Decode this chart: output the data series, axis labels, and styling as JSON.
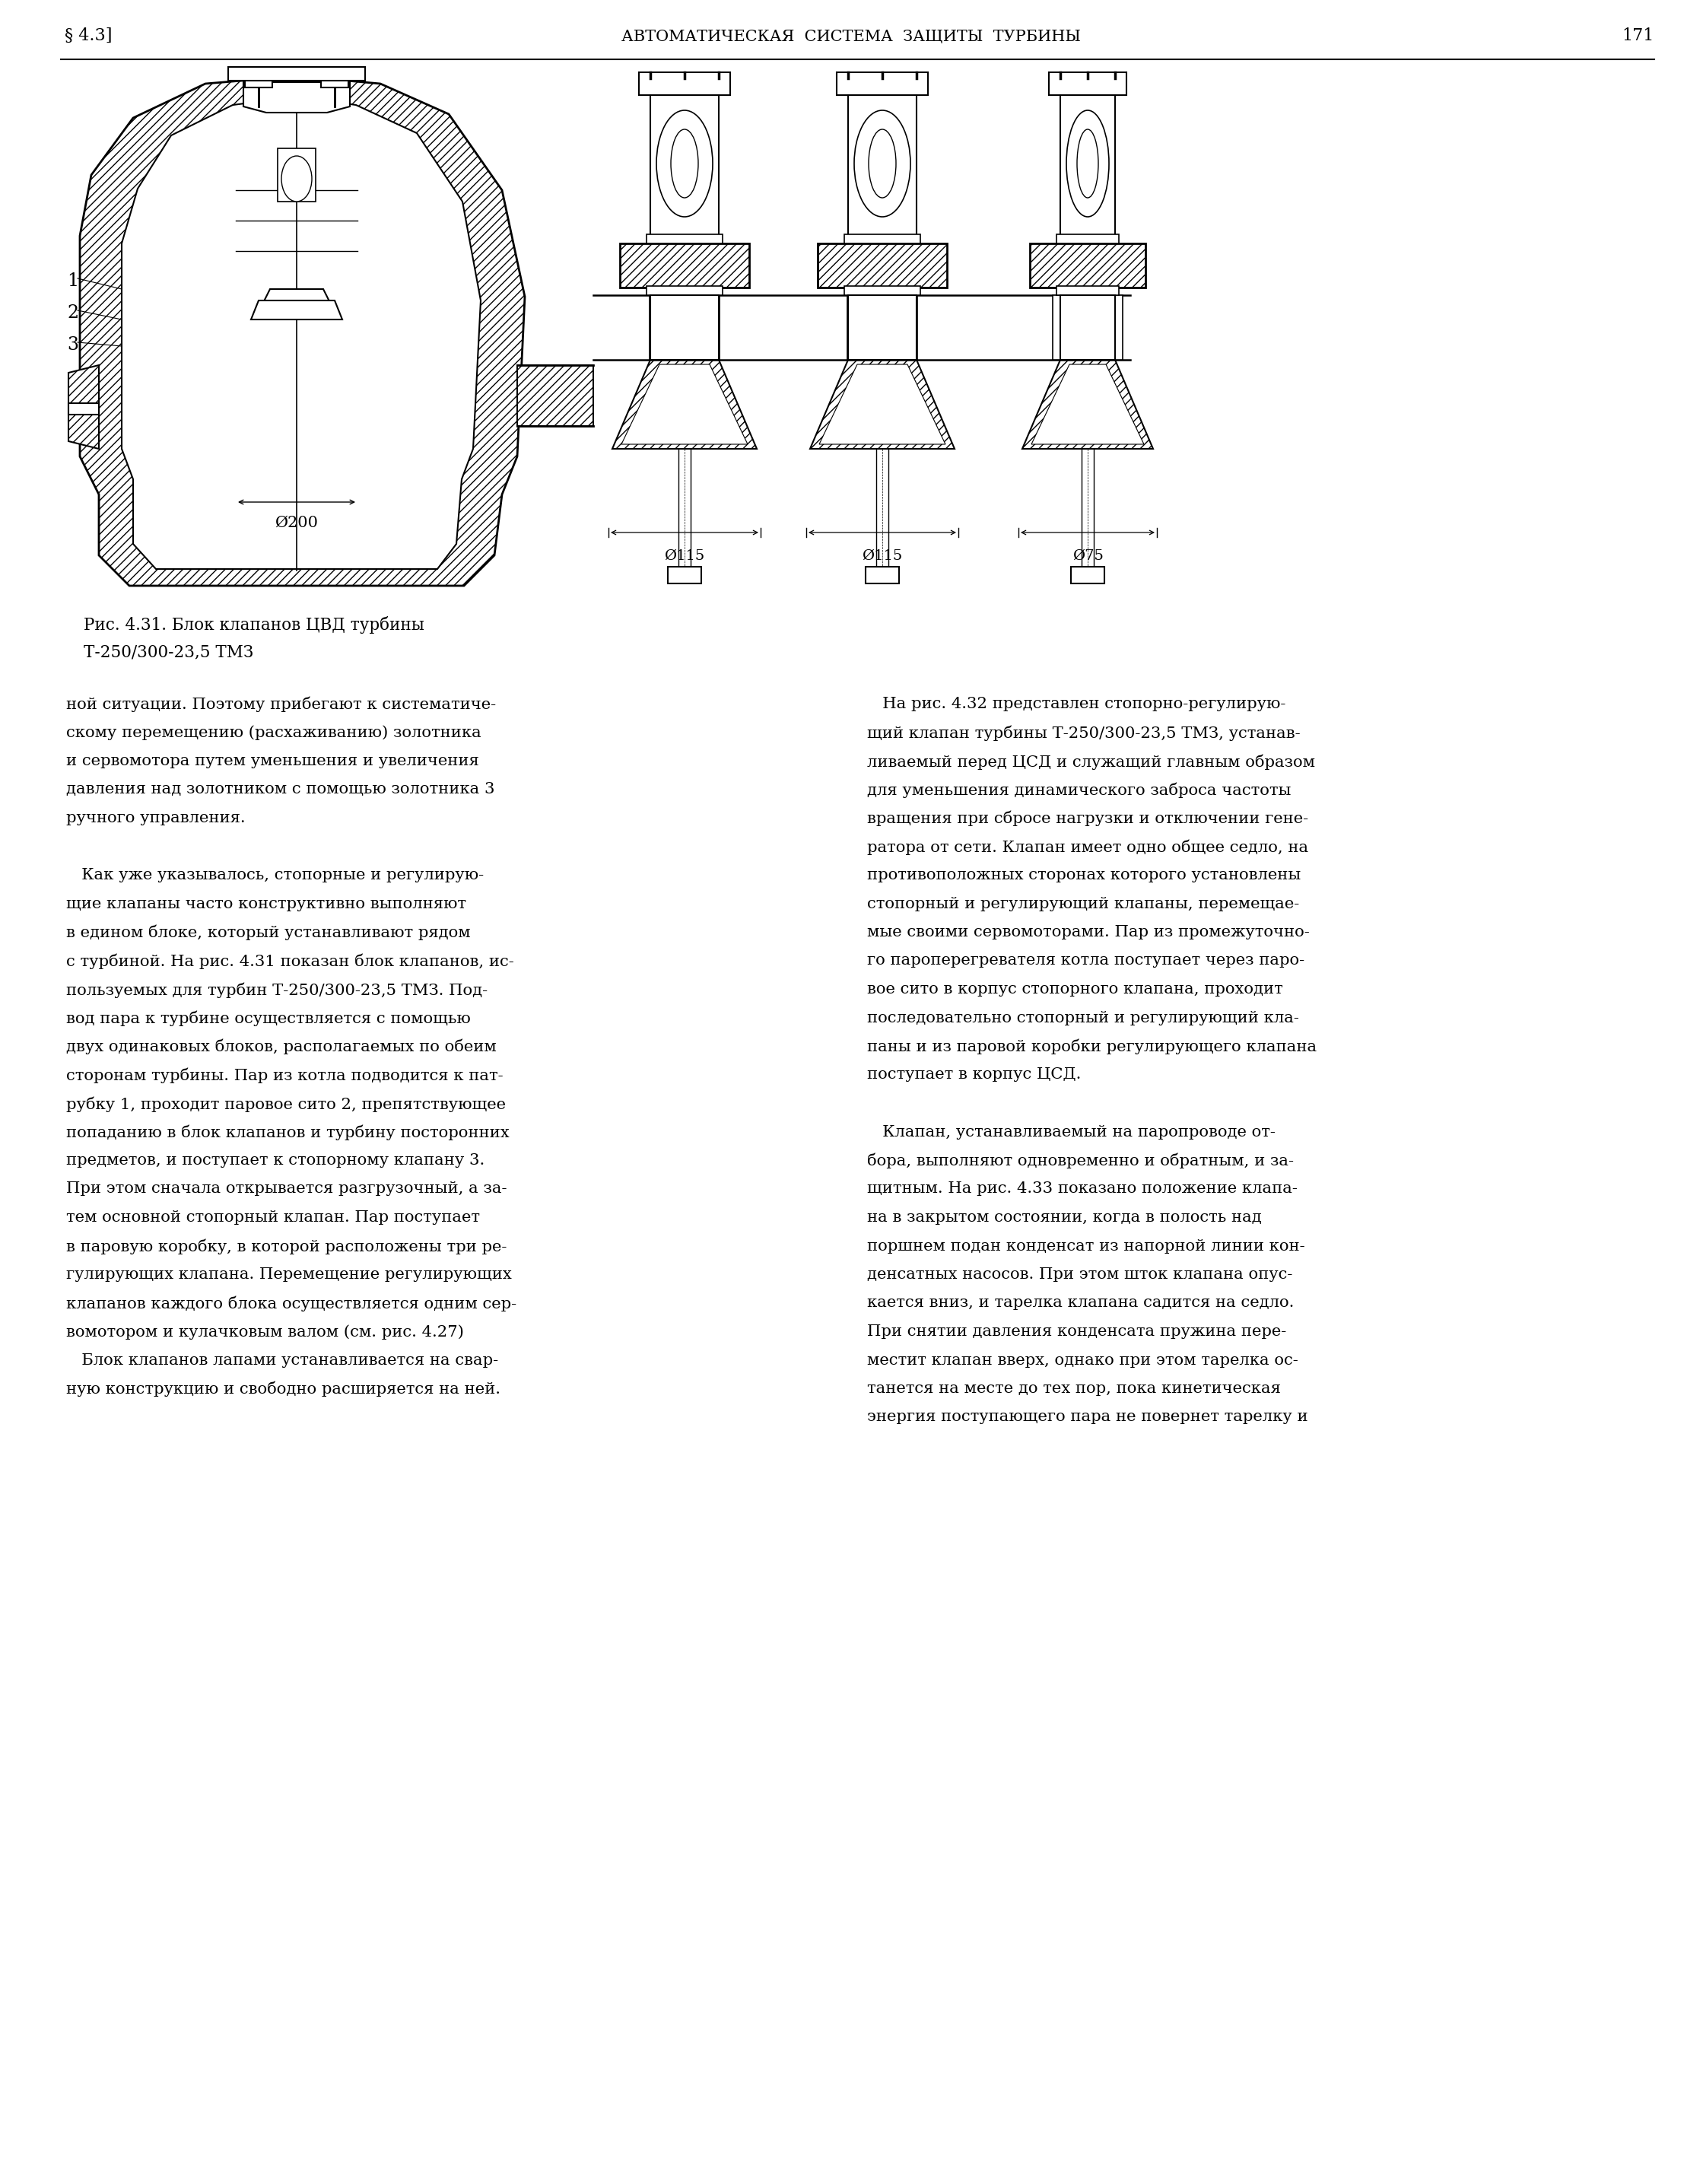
{
  "page_number": "171",
  "section": "§ 4.3]",
  "header": "АВТОМАТИЧЕСКАЯ  СИСТЕМА  ЗАЩИТЫ  ТУРБИНЫ",
  "figure_caption_line1": "Рис. 4.31. Блок клапанов ЦВД турбины",
  "figure_caption_line2": "Т-250/300-23,5 ТМЗ",
  "left_column_text": [
    "ной ситуации. Поэтому прибегают к систематиче-",
    "скому перемещению (расхаживанию) золотника",
    "и сервомотора путем уменьшения и увеличения",
    "давления над золотником с помощью золотника 3",
    "ручного управления.",
    "",
    "   Как уже указывалось, стопорные и регулирую-",
    "щие клапаны часто конструктивно выполняют",
    "в едином блоке, который устанавливают рядом",
    "с турбиной. На рис. 4.31 показан блок клапанов, ис-",
    "пользуемых для турбин Т-250/300-23,5 ТМЗ. Под-",
    "вод пара к турбине осуществляется с помощью",
    "двух одинаковых блоков, располагаемых по обеим",
    "сторонам турбины. Пар из котла подводится к пат-",
    "рубку 1, проходит паровое сито 2, препятствующее",
    "попаданию в блок клапанов и турбину посторонних",
    "предметов, и поступает к стопорному клапану 3.",
    "При этом сначала открывается разгрузочный, а за-",
    "тем основной стопорный клапан. Пар поступает",
    "в паровую коробку, в которой расположены три ре-",
    "гулирующих клапана. Перемещение регулирующих",
    "клапанов каждого блока осуществляется одним сер-",
    "вомотором и кулачковым валом (см. рис. 4.27)",
    "   Блок клапанов лапами устанавливается на свар-",
    "ную конструкцию и свободно расширяется на ней."
  ],
  "right_column_text": [
    "   На рис. 4.32 представлен стопорно-регулирую-",
    "щий клапан турбины Т-250/300-23,5 ТМЗ, устанав-",
    "ливаемый перед ЦСД и служащий главным образом",
    "для уменьшения динамического заброса частоты",
    "вращения при сбросе нагрузки и отключении гене-",
    "ратора от сети. Клапан имеет одно общее седло, на",
    "противоположных сторонах которого установлены",
    "стопорный и регулирующий клапаны, перемещае-",
    "мые своими сервомоторами. Пар из промежуточно-",
    "го пароперегревателя котла поступает через паро-",
    "вое сито в корпус стопорного клапана, проходит",
    "последовательно стопорный и регулирующий кла-",
    "паны и из паровой коробки регулирующего клапана",
    "поступает в корпус ЦСД.",
    "",
    "   Клапан, устанавливаемый на паропроводе от-",
    "бора, выполняют одновременно и обратным, и за-",
    "щитным. На рис. 4.33 показано положение клапа-",
    "на в закрытом состоянии, когда в полость над",
    "поршнем подан конденсат из напорной линии кон-",
    "денсатных насосов. При этом шток клапана опус-",
    "кается вниз, и тарелка клапана садится на седло.",
    "При снятии давления конденсата пружина пере-",
    "местит клапан вверх, однако при этом тарелка ос-",
    "танется на месте до тех пор, пока кинетическая",
    "энергия поступающего пара не повернет тарелку и"
  ],
  "bg_color": "#ffffff",
  "text_color": "#000000",
  "line_color": "#000000",
  "diam_labels": [
    "Ø115",
    "Ø115",
    "Ø75"
  ],
  "diam_label_main": "Ø200"
}
